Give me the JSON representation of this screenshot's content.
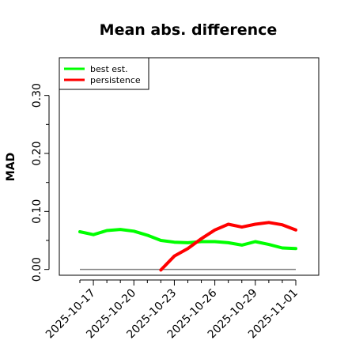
{
  "chart_data": {
    "type": "line",
    "title": "Mean abs. difference",
    "xlabel": "",
    "ylabel": "MAD",
    "ylim": [
      -0.01,
      0.365
    ],
    "yticks": [
      0.0,
      0.1,
      0.2,
      0.3
    ],
    "ytick_labels": [
      "0.00",
      "0.10",
      "0.20",
      "0.30"
    ],
    "x": [
      "2025-10-16",
      "2025-10-17",
      "2025-10-18",
      "2025-10-19",
      "2025-10-20",
      "2025-10-21",
      "2025-10-22",
      "2025-10-23",
      "2025-10-24",
      "2025-10-25",
      "2025-10-26",
      "2025-10-27",
      "2025-10-28",
      "2025-10-29",
      "2025-10-30",
      "2025-10-31",
      "2025-11-01"
    ],
    "xticks": [
      "2025-10-17",
      "2025-10-20",
      "2025-10-23",
      "2025-10-26",
      "2025-10-29",
      "2025-11-01"
    ],
    "xtick_labels": [
      "2025-10-17",
      "2025-10-20",
      "2025-10-23",
      "2025-10-26",
      "2025-10-29",
      "2025-11-01"
    ],
    "reference_line": {
      "y": 0.0,
      "color": "#808080"
    },
    "grid": false,
    "legend_position": "top-left",
    "series": [
      {
        "name": "best est.",
        "color": "#00ff00",
        "values": [
          0.065,
          0.06,
          0.067,
          0.069,
          0.066,
          0.059,
          0.05,
          0.047,
          0.046,
          0.048,
          0.048,
          0.046,
          0.042,
          0.048,
          0.043,
          0.037,
          0.036
        ]
      },
      {
        "name": "persistence",
        "color": "#ff0000",
        "values": [
          null,
          null,
          null,
          null,
          null,
          null,
          -0.001,
          0.023,
          0.036,
          0.053,
          0.068,
          0.078,
          0.073,
          0.078,
          0.081,
          0.077,
          0.068
        ]
      }
    ]
  }
}
